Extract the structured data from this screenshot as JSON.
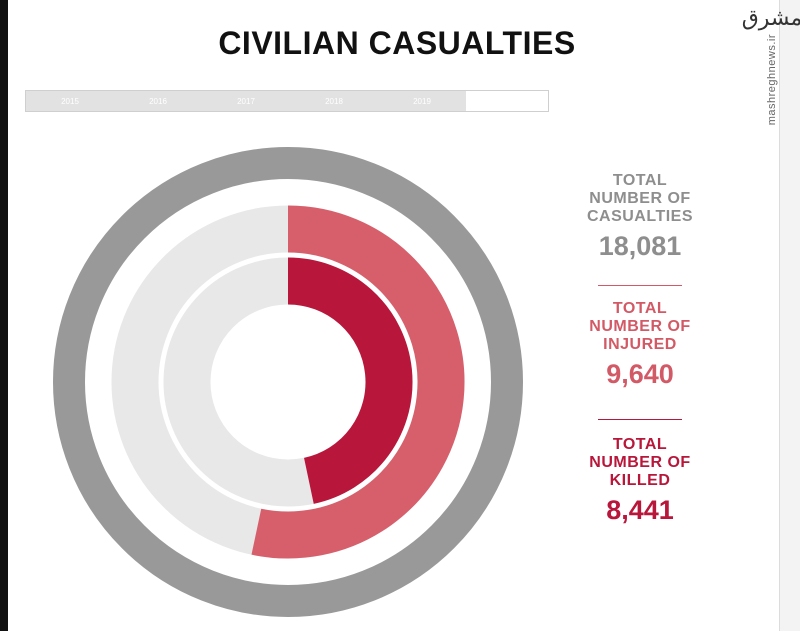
{
  "title": "CIVILIAN CASUALTIES",
  "watermark": {
    "logo": "ﻣﺸﺮﻕ",
    "site": "mashreghnews.ir"
  },
  "year_tabs": [
    {
      "label": "2015",
      "active": false
    },
    {
      "label": "2016",
      "active": false
    },
    {
      "label": "2017",
      "active": false
    },
    {
      "label": "2018",
      "active": false
    },
    {
      "label": "2019",
      "active": false
    },
    {
      "label": "",
      "active": true
    }
  ],
  "stats": [
    {
      "label_lines": [
        "TOTAL",
        "NUMBER OF",
        "CASUALTIES"
      ],
      "value": "18,081",
      "color": "#8e8e8e"
    },
    {
      "label_lines": [
        "TOTAL",
        "NUMBER OF",
        "INJURED"
      ],
      "value": "9,640",
      "color": "#d25a66"
    },
    {
      "label_lines": [
        "TOTAL",
        "NUMBER OF",
        "KILLED"
      ],
      "value": "8,441",
      "color": "#b8163a"
    }
  ],
  "chart_data": {
    "type": "radial_bar",
    "title": "CIVILIAN CASUALTIES",
    "total": 18081,
    "series": [
      {
        "name": "CASUALTIES",
        "value": 18081,
        "color": "#999999"
      },
      {
        "name": "INJURED",
        "value": 9640,
        "color": "#d75f6b"
      },
      {
        "name": "KILLED",
        "value": 8441,
        "color": "#b8163a"
      }
    ],
    "track_color": "#e8e8e8"
  }
}
